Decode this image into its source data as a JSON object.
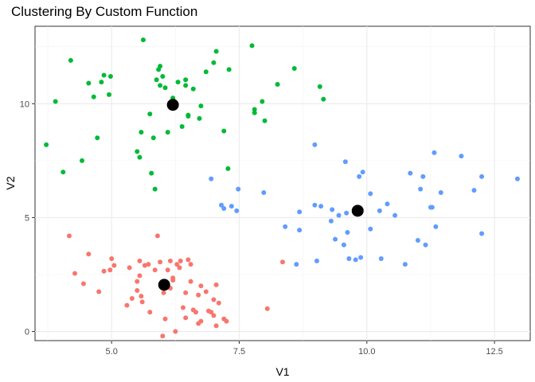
{
  "chart_data": {
    "type": "scatter",
    "title": "Clustering By Custom Function",
    "xlabel": "V1",
    "ylabel": "V2",
    "xlim": [
      3.5,
      13.2
    ],
    "ylim": [
      -0.4,
      13.4
    ],
    "x_ticks": [
      5.0,
      7.5,
      10.0,
      12.5
    ],
    "x_tick_labels": [
      "5.0",
      "7.5",
      "10.0",
      "12.5"
    ],
    "y_ticks": [
      0,
      5,
      10
    ],
    "y_tick_labels": [
      "0",
      "5",
      "10"
    ],
    "grid": true,
    "legend": "none",
    "series": [
      {
        "color": "#f8766d",
        "points": [
          [
            4.17,
            4.2
          ],
          [
            4.28,
            2.55
          ],
          [
            4.45,
            2.1
          ],
          [
            4.55,
            3.4
          ],
          [
            4.75,
            1.75
          ],
          [
            4.85,
            2.65
          ],
          [
            4.97,
            2.7
          ],
          [
            5.0,
            3.2
          ],
          [
            5.05,
            2.9
          ],
          [
            5.3,
            1.15
          ],
          [
            5.35,
            2.8
          ],
          [
            5.4,
            1.45
          ],
          [
            5.5,
            2.2
          ],
          [
            5.5,
            1.8
          ],
          [
            5.55,
            3.1
          ],
          [
            5.55,
            2.45
          ],
          [
            5.58,
            1.55
          ],
          [
            5.6,
            1.3
          ],
          [
            5.65,
            2.9
          ],
          [
            5.72,
            2.95
          ],
          [
            5.75,
            0.85
          ],
          [
            5.85,
            2.7
          ],
          [
            5.9,
            4.2
          ],
          [
            5.95,
            3.05
          ],
          [
            6.0,
            -0.2
          ],
          [
            6.02,
            1.7
          ],
          [
            6.05,
            0.55
          ],
          [
            6.1,
            2.7
          ],
          [
            6.15,
            3.1
          ],
          [
            6.15,
            1.9
          ],
          [
            6.2,
            2.25
          ],
          [
            6.2,
            2.35
          ],
          [
            6.25,
            0.0
          ],
          [
            6.28,
            2.95
          ],
          [
            6.33,
            2.8
          ],
          [
            6.35,
            3.1
          ],
          [
            6.4,
            1.05
          ],
          [
            6.45,
            1.7
          ],
          [
            6.45,
            0.6
          ],
          [
            6.5,
            3.15
          ],
          [
            6.55,
            2.95
          ],
          [
            6.55,
            2.2
          ],
          [
            6.6,
            0.95
          ],
          [
            6.65,
            0.85
          ],
          [
            6.7,
            1.6
          ],
          [
            6.7,
            0.35
          ],
          [
            6.75,
            0.45
          ],
          [
            6.75,
            2.0
          ],
          [
            6.85,
            1.75
          ],
          [
            6.9,
            0.9
          ],
          [
            6.95,
            0.85
          ],
          [
            7.0,
            1.4
          ],
          [
            7.0,
            0.7
          ],
          [
            7.05,
            0.25
          ],
          [
            7.05,
            2.05
          ],
          [
            7.1,
            1.25
          ],
          [
            7.2,
            0.55
          ],
          [
            7.25,
            0.45
          ],
          [
            8.05,
            1.0
          ],
          [
            8.35,
            3.05
          ]
        ]
      },
      {
        "color": "#00ba38",
        "points": [
          [
            3.72,
            8.2
          ],
          [
            3.9,
            10.1
          ],
          [
            4.05,
            7.0
          ],
          [
            4.2,
            11.9
          ],
          [
            4.42,
            7.5
          ],
          [
            4.55,
            10.9
          ],
          [
            4.65,
            10.3
          ],
          [
            4.72,
            8.5
          ],
          [
            4.8,
            10.95
          ],
          [
            4.85,
            11.25
          ],
          [
            4.95,
            10.4
          ],
          [
            4.98,
            11.2
          ],
          [
            5.5,
            7.9
          ],
          [
            5.55,
            7.65
          ],
          [
            5.58,
            8.75
          ],
          [
            5.62,
            12.8
          ],
          [
            5.75,
            9.55
          ],
          [
            5.78,
            6.95
          ],
          [
            5.82,
            8.5
          ],
          [
            5.85,
            6.25
          ],
          [
            5.88,
            11.05
          ],
          [
            5.92,
            11.5
          ],
          [
            5.95,
            11.65
          ],
          [
            5.95,
            10.8
          ],
          [
            6.0,
            11.2
          ],
          [
            6.05,
            10.7
          ],
          [
            6.1,
            8.75
          ],
          [
            6.2,
            10.25
          ],
          [
            6.2,
            10.0
          ],
          [
            6.3,
            10.95
          ],
          [
            6.38,
            9.0
          ],
          [
            6.45,
            10.8
          ],
          [
            6.45,
            11.05
          ],
          [
            6.5,
            9.5
          ],
          [
            6.5,
            9.45
          ],
          [
            6.6,
            10.65
          ],
          [
            6.72,
            9.35
          ],
          [
            6.75,
            9.9
          ],
          [
            6.85,
            11.4
          ],
          [
            7.0,
            11.8
          ],
          [
            7.05,
            12.3
          ],
          [
            7.2,
            8.8
          ],
          [
            7.28,
            7.15
          ],
          [
            7.3,
            11.5
          ],
          [
            7.75,
            12.55
          ],
          [
            7.8,
            9.6
          ],
          [
            7.8,
            9.75
          ],
          [
            7.95,
            10.1
          ],
          [
            8.0,
            9.25
          ],
          [
            8.25,
            10.85
          ],
          [
            8.58,
            11.55
          ],
          [
            9.08,
            10.75
          ],
          [
            9.15,
            10.2
          ]
        ]
      },
      {
        "color": "#619cff",
        "points": [
          [
            6.95,
            6.7
          ],
          [
            7.15,
            5.55
          ],
          [
            7.2,
            5.4
          ],
          [
            7.35,
            5.5
          ],
          [
            7.45,
            5.3
          ],
          [
            7.48,
            6.25
          ],
          [
            7.98,
            6.1
          ],
          [
            8.4,
            4.6
          ],
          [
            8.62,
            2.95
          ],
          [
            8.68,
            5.25
          ],
          [
            8.68,
            4.45
          ],
          [
            8.98,
            8.2
          ],
          [
            8.98,
            5.55
          ],
          [
            9.02,
            3.1
          ],
          [
            9.1,
            5.5
          ],
          [
            9.3,
            4.85
          ],
          [
            9.32,
            5.35
          ],
          [
            9.38,
            4.05
          ],
          [
            9.45,
            5.1
          ],
          [
            9.55,
            3.8
          ],
          [
            9.58,
            7.45
          ],
          [
            9.6,
            5.2
          ],
          [
            9.62,
            4.35
          ],
          [
            9.65,
            3.2
          ],
          [
            9.78,
            3.15
          ],
          [
            9.85,
            6.8
          ],
          [
            9.88,
            3.25
          ],
          [
            9.92,
            7.0
          ],
          [
            10.07,
            4.5
          ],
          [
            10.07,
            6.05
          ],
          [
            10.25,
            5.3
          ],
          [
            10.28,
            3.2
          ],
          [
            10.4,
            5.6
          ],
          [
            10.55,
            5.1
          ],
          [
            10.75,
            2.95
          ],
          [
            10.85,
            6.95
          ],
          [
            11.0,
            4.0
          ],
          [
            11.05,
            6.25
          ],
          [
            11.1,
            6.8
          ],
          [
            11.15,
            3.8
          ],
          [
            11.25,
            5.45
          ],
          [
            11.28,
            5.45
          ],
          [
            11.32,
            7.85
          ],
          [
            11.35,
            4.6
          ],
          [
            11.45,
            6.1
          ],
          [
            11.85,
            7.7
          ],
          [
            12.1,
            6.2
          ],
          [
            12.25,
            6.8
          ],
          [
            12.25,
            4.3
          ],
          [
            12.95,
            6.7
          ]
        ]
      }
    ],
    "centers": {
      "color": "#000000",
      "points": [
        [
          6.2,
          9.95
        ],
        [
          9.82,
          5.3
        ],
        [
          6.03,
          2.05
        ]
      ]
    }
  }
}
